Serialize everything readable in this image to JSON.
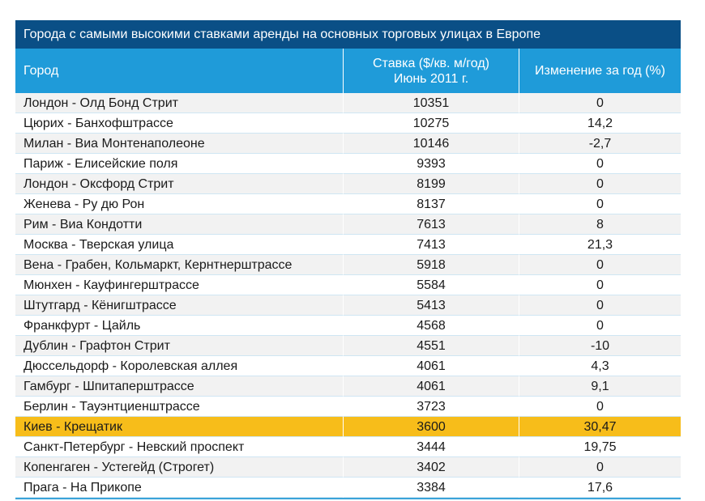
{
  "title": "Города с самыми высокими ставками аренды на основных торговых улицах в Европе",
  "header": {
    "city": "Город",
    "rate_line1": "Ставка ($/кв. м/год)",
    "rate_line2": "Июнь 2011 г.",
    "change": "Изменение за год (%)"
  },
  "highlight_color": "#f7bd1a",
  "rows": [
    {
      "city": "Лондон - Олд Бонд Стрит",
      "rate": "10351",
      "change": "0"
    },
    {
      "city": "Цюрих - Банхофштрассе",
      "rate": "10275",
      "change": "14,2"
    },
    {
      "city": "Милан - Виа Монтенаполеоне",
      "rate": "10146",
      "change": "-2,7"
    },
    {
      "city": "Париж - Елисейские поля",
      "rate": "9393",
      "change": "0"
    },
    {
      "city": "Лондон - Оксфорд Стрит",
      "rate": "8199",
      "change": "0"
    },
    {
      "city": "Женева - Ру дю Рон",
      "rate": "8137",
      "change": "0"
    },
    {
      "city": "Рим - Виа Кондотти",
      "rate": "7613",
      "change": "8"
    },
    {
      "city": "Москва - Тверская улица",
      "rate": "7413",
      "change": "21,3"
    },
    {
      "city": "Вена - Грабен, Кольмаркт, Кернтнерштрассе",
      "rate": "5918",
      "change": "0"
    },
    {
      "city": "Мюнхен - Кауфингерштрассе",
      "rate": "5584",
      "change": "0"
    },
    {
      "city": "Штутгард - Кёнигштрассе",
      "rate": "5413",
      "change": "0"
    },
    {
      "city": "Франкфурт - Цайль",
      "rate": "4568",
      "change": "0"
    },
    {
      "city": "Дублин - Графтон Стрит",
      "rate": "4551",
      "change": "-10"
    },
    {
      "city": "Дюссельдорф - Королевская аллея",
      "rate": "4061",
      "change": "4,3"
    },
    {
      "city": "Гамбург - Шпитаперштрассе",
      "rate": "4061",
      "change": "9,1"
    },
    {
      "city": "Берлин - Тауэнтциенштрассе",
      "rate": "3723",
      "change": "0"
    },
    {
      "city": "Киев - Крещатик",
      "rate": "3600",
      "change": "30,47",
      "highlight": true
    },
    {
      "city": "Санкт-Петербург - Невский проспект",
      "rate": "3444",
      "change": "19,75"
    },
    {
      "city": "Копенгаген - Устегейд (Строгет)",
      "rate": "3402",
      "change": "0"
    },
    {
      "city": "Прага - На Прикопе",
      "rate": "3384",
      "change": "17,6"
    }
  ]
}
